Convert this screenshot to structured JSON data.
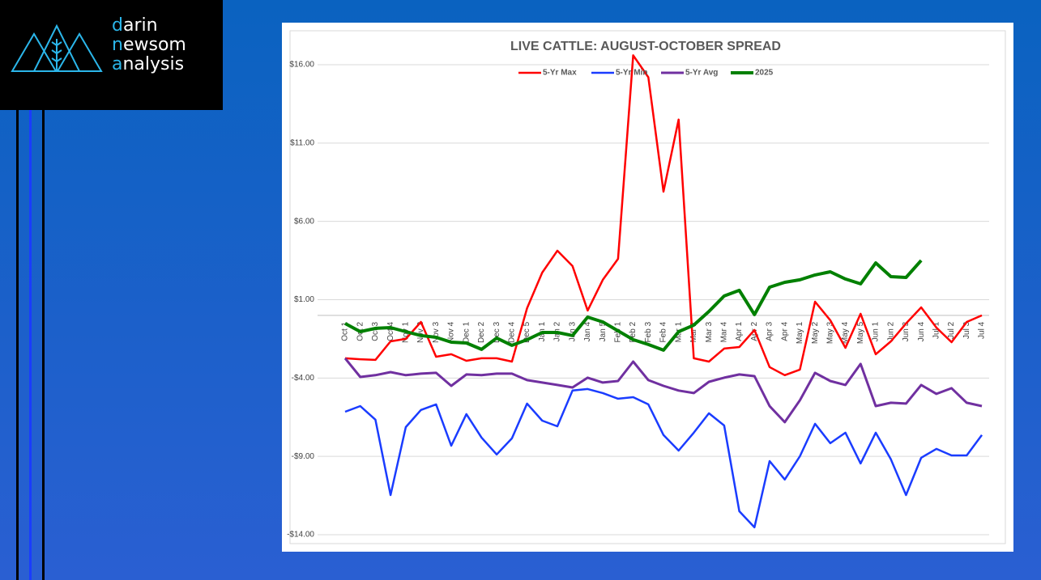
{
  "logo": {
    "lines": [
      {
        "initial": "d",
        "rest": "arin"
      },
      {
        "initial": "n",
        "rest": "ewsom"
      },
      {
        "initial": "a",
        "rest": "nalysis"
      }
    ]
  },
  "chart_data": {
    "type": "line",
    "title": "LIVE CATTLE: AUGUST-OCTOBER SPREAD",
    "categories": [
      "Oct 1",
      "Oct 2",
      "Oct 3",
      "Oct 4",
      "Nov 1",
      "Nov 2",
      "Nov 3",
      "Nov 4",
      "Dec 1",
      "Dec 2",
      "Dec 3",
      "Dec 4",
      "Dec 5",
      "Jan 1",
      "Jan 2",
      "Jan 3",
      "Jan 4",
      "Jan 5",
      "Feb 1",
      "Feb 2",
      "Feb 3",
      "Feb 4",
      "Mar 1",
      "Mar 2",
      "Mar 3",
      "Mar 4",
      "Apr 1",
      "Apr 2",
      "Apr 3",
      "Apr 4",
      "May 1",
      "May 2",
      "May 3",
      "May 4",
      "May 5",
      "Jun 1",
      "Jun 2",
      "Jun 3",
      "Jun 4",
      "Jul 1",
      "Jul 2",
      "Jul 3",
      "Jul 4"
    ],
    "series": [
      {
        "name": "5-Yr Max",
        "color": "#ff0000",
        "values": [
          -2.74,
          -2.8,
          -2.84,
          -1.66,
          -1.5,
          -0.42,
          -2.64,
          -2.48,
          -2.9,
          -2.74,
          -2.74,
          -2.95,
          0.46,
          2.73,
          4.13,
          3.15,
          0.31,
          2.27,
          3.61,
          16.6,
          15.2,
          7.9,
          12.5,
          -2.74,
          -2.95,
          -2.12,
          -2.02,
          -0.93,
          -3.3,
          -3.82,
          -3.46,
          0.87,
          -0.31,
          -2.07,
          0.1,
          -2.48,
          -1.66,
          -0.52,
          0.51,
          -0.78,
          -1.71,
          -0.42,
          0.0
        ]
      },
      {
        "name": "5-Yr Min",
        "color": "#1a3cff",
        "values": [
          -6.15,
          -5.79,
          -6.66,
          -11.47,
          -7.13,
          -6.04,
          -5.68,
          -8.32,
          -6.3,
          -7.8,
          -8.88,
          -7.85,
          -5.63,
          -6.72,
          -7.08,
          -4.8,
          -4.7,
          -4.96,
          -5.32,
          -5.22,
          -5.68,
          -7.64,
          -8.63,
          -7.49,
          -6.25,
          -7.03,
          -12.5,
          -13.53,
          -9.3,
          -10.48,
          -8.99,
          -6.92,
          -8.16,
          -7.49,
          -9.45,
          -7.49,
          -9.19,
          -11.47,
          -9.09,
          -8.52,
          -8.94,
          -8.94,
          -7.64
        ]
      },
      {
        "name": "5-Yr Avg",
        "color": "#7030a0",
        "values": [
          -2.74,
          -3.93,
          -3.82,
          -3.62,
          -3.82,
          -3.72,
          -3.67,
          -4.5,
          -3.77,
          -3.82,
          -3.72,
          -3.72,
          -4.13,
          -4.29,
          -4.44,
          -4.6,
          -3.98,
          -4.29,
          -4.19,
          -2.95,
          -4.13,
          -4.5,
          -4.8,
          -4.96,
          -4.24,
          -3.98,
          -3.77,
          -3.88,
          -5.79,
          -6.82,
          -5.42,
          -3.67,
          -4.19,
          -4.44,
          -3.1,
          -5.79,
          -5.58,
          -5.63,
          -4.44,
          -5.01,
          -4.65,
          -5.58,
          -5.79
        ]
      },
      {
        "name": "2025",
        "color": "#008000",
        "values": [
          -0.52,
          -1.04,
          -0.83,
          -0.78,
          -1.04,
          -1.29,
          -1.4,
          -1.71,
          -1.76,
          -2.17,
          -1.45,
          -1.91,
          -1.55,
          -1.09,
          -1.09,
          -1.29,
          -0.11,
          -0.42,
          -0.99,
          -1.55,
          -1.86,
          -2.22,
          -1.04,
          -0.62,
          0.25,
          1.24,
          1.6,
          0.05,
          1.8,
          2.11,
          2.27,
          2.58,
          2.78,
          2.32,
          2.01,
          3.35,
          2.47,
          2.42,
          3.51,
          null,
          null,
          null,
          null
        ]
      }
    ],
    "ylim": [
      -14,
      16
    ],
    "yticks": [
      {
        "value": -14,
        "label": "-$14.00"
      },
      {
        "value": -9,
        "label": "-$9.00"
      },
      {
        "value": -4,
        "label": "-$4.00"
      },
      {
        "value": 1,
        "label": "$1.00"
      },
      {
        "value": 6,
        "label": "$6.00"
      },
      {
        "value": 11,
        "label": "$11.00"
      },
      {
        "value": 16,
        "label": "$16.00"
      }
    ],
    "grid": true,
    "legend": "top"
  }
}
